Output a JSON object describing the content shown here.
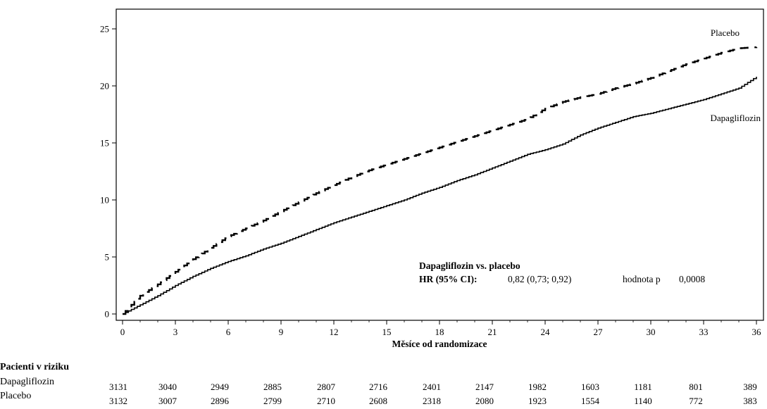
{
  "chart_data": {
    "type": "line",
    "title": "",
    "xlabel": "Měsíce od randomizace",
    "ylabel": "",
    "xlim": [
      0,
      36
    ],
    "ylim": [
      0,
      26
    ],
    "x_ticks": [
      0,
      3,
      6,
      9,
      12,
      15,
      18,
      21,
      24,
      27,
      30,
      33,
      36
    ],
    "y_ticks": [
      0,
      5,
      10,
      15,
      20,
      25
    ],
    "grid": false,
    "series": [
      {
        "name": "Placebo",
        "style": "dashed",
        "points": [
          [
            0,
            0
          ],
          [
            1,
            1.6
          ],
          [
            2,
            2.6
          ],
          [
            3,
            3.7
          ],
          [
            4,
            4.8
          ],
          [
            5,
            5.8
          ],
          [
            6,
            6.8
          ],
          [
            7,
            7.5
          ],
          [
            8,
            8.2
          ],
          [
            9,
            9.0
          ],
          [
            10,
            9.8
          ],
          [
            11,
            10.6
          ],
          [
            12,
            11.3
          ],
          [
            13,
            12.0
          ],
          [
            14,
            12.6
          ],
          [
            15,
            13.1
          ],
          [
            16,
            13.6
          ],
          [
            17,
            14.1
          ],
          [
            18,
            14.6
          ],
          [
            19,
            15.1
          ],
          [
            20,
            15.6
          ],
          [
            21,
            16.1
          ],
          [
            22,
            16.6
          ],
          [
            23,
            17.1
          ],
          [
            24,
            18.0
          ],
          [
            25,
            18.6
          ],
          [
            26,
            19.0
          ],
          [
            27,
            19.3
          ],
          [
            28,
            19.8
          ],
          [
            29,
            20.2
          ],
          [
            30,
            20.7
          ],
          [
            31,
            21.3
          ],
          [
            32,
            21.9
          ],
          [
            33,
            22.4
          ],
          [
            34,
            22.9
          ],
          [
            35,
            23.3
          ],
          [
            36,
            23.4
          ]
        ]
      },
      {
        "name": "Dapagliflozin",
        "style": "solid",
        "points": [
          [
            0,
            0
          ],
          [
            1,
            0.8
          ],
          [
            2,
            1.6
          ],
          [
            3,
            2.5
          ],
          [
            4,
            3.3
          ],
          [
            5,
            4.0
          ],
          [
            6,
            4.6
          ],
          [
            7,
            5.1
          ],
          [
            8,
            5.7
          ],
          [
            9,
            6.2
          ],
          [
            10,
            6.8
          ],
          [
            11,
            7.4
          ],
          [
            12,
            8.0
          ],
          [
            13,
            8.5
          ],
          [
            14,
            9.0
          ],
          [
            15,
            9.5
          ],
          [
            16,
            10.0
          ],
          [
            17,
            10.6
          ],
          [
            18,
            11.1
          ],
          [
            19,
            11.7
          ],
          [
            20,
            12.2
          ],
          [
            21,
            12.8
          ],
          [
            22,
            13.4
          ],
          [
            23,
            14.0
          ],
          [
            24,
            14.4
          ],
          [
            25,
            14.9
          ],
          [
            26,
            15.7
          ],
          [
            27,
            16.3
          ],
          [
            28,
            16.8
          ],
          [
            29,
            17.3
          ],
          [
            30,
            17.6
          ],
          [
            31,
            18.0
          ],
          [
            32,
            18.4
          ],
          [
            33,
            18.8
          ],
          [
            34,
            19.3
          ],
          [
            35,
            19.8
          ],
          [
            36,
            20.8
          ]
        ]
      }
    ],
    "annotation": {
      "title": "Dapagliflozin vs. placebo",
      "hr_label": "HR (95% CI):",
      "hr_value": "0,82 (0,73; 0,92)",
      "p_label": "hodnota p",
      "p_value": "0,0008"
    }
  },
  "risk_table": {
    "heading": "Pacienti v riziku",
    "rows": [
      {
        "label": "Dapagliflozin",
        "values": [
          "3131",
          "3040",
          "2949",
          "2885",
          "2807",
          "2716",
          "2401",
          "2147",
          "1982",
          "1603",
          "1181",
          "801",
          "389"
        ]
      },
      {
        "label": "Placebo",
        "values": [
          "3132",
          "3007",
          "2896",
          "2799",
          "2710",
          "2608",
          "2318",
          "2080",
          "1923",
          "1554",
          "1140",
          "772",
          "383"
        ]
      }
    ]
  }
}
